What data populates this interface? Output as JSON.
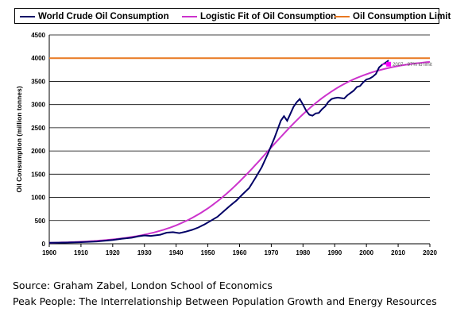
{
  "chart_data": {
    "type": "line",
    "title": "",
    "xlabel": "",
    "ylabel": "Oil Consumption (million tonnes)",
    "xlim": [
      1900,
      2020
    ],
    "ylim": [
      0,
      4500
    ],
    "x_ticks": [
      "1900",
      "1910",
      "1920",
      "1930",
      "1940",
      "1950",
      "1960",
      "1970",
      "1980",
      "1990",
      "2000",
      "2010",
      "2020"
    ],
    "y_ticks": [
      "0",
      "500",
      "1000",
      "1500",
      "2000",
      "2500",
      "3000",
      "3500",
      "4000",
      "4500"
    ],
    "grid": "horizontal",
    "legend": "top",
    "series": [
      {
        "name": "World Crude Oil Consumption",
        "color": "#000066",
        "points": [
          [
            1900,
            20
          ],
          [
            1905,
            25
          ],
          [
            1910,
            35
          ],
          [
            1915,
            50
          ],
          [
            1920,
            80
          ],
          [
            1923,
            110
          ],
          [
            1926,
            130
          ],
          [
            1928,
            160
          ],
          [
            1930,
            180
          ],
          [
            1932,
            170
          ],
          [
            1935,
            195
          ],
          [
            1937,
            240
          ],
          [
            1939,
            250
          ],
          [
            1941,
            230
          ],
          [
            1943,
            260
          ],
          [
            1945,
            300
          ],
          [
            1947,
            350
          ],
          [
            1949,
            420
          ],
          [
            1951,
            500
          ],
          [
            1953,
            580
          ],
          [
            1955,
            700
          ],
          [
            1957,
            820
          ],
          [
            1959,
            930
          ],
          [
            1961,
            1070
          ],
          [
            1963,
            1200
          ],
          [
            1965,
            1420
          ],
          [
            1967,
            1650
          ],
          [
            1969,
            1950
          ],
          [
            1971,
            2280
          ],
          [
            1973,
            2650
          ],
          [
            1974,
            2750
          ],
          [
            1975,
            2650
          ],
          [
            1976,
            2800
          ],
          [
            1977,
            2950
          ],
          [
            1978,
            3050
          ],
          [
            1979,
            3120
          ],
          [
            1980,
            3000
          ],
          [
            1981,
            2870
          ],
          [
            1982,
            2780
          ],
          [
            1983,
            2760
          ],
          [
            1984,
            2810
          ],
          [
            1985,
            2820
          ],
          [
            1986,
            2900
          ],
          [
            1987,
            2960
          ],
          [
            1988,
            3060
          ],
          [
            1989,
            3120
          ],
          [
            1990,
            3140
          ],
          [
            1991,
            3150
          ],
          [
            1992,
            3140
          ],
          [
            1993,
            3130
          ],
          [
            1994,
            3200
          ],
          [
            1995,
            3250
          ],
          [
            1996,
            3300
          ],
          [
            1997,
            3380
          ],
          [
            1998,
            3400
          ],
          [
            1999,
            3480
          ],
          [
            2000,
            3540
          ],
          [
            2001,
            3560
          ],
          [
            2002,
            3600
          ],
          [
            2003,
            3660
          ],
          [
            2004,
            3800
          ],
          [
            2005,
            3860
          ],
          [
            2006,
            3900
          ],
          [
            2007,
            3950
          ]
        ]
      },
      {
        "name": "Logistic Fit of Oil Consumption",
        "color": "#cc33cc",
        "logistic": {
          "limit": 4000,
          "midpoint_year": 1969,
          "rate": 0.076
        },
        "x_range": [
          1900,
          2020
        ]
      },
      {
        "name": "Oil Consumption Limit",
        "color": "#e87820",
        "points": [
          [
            1900,
            4000
          ],
          [
            2020,
            4000
          ]
        ]
      }
    ],
    "annotations": [
      {
        "text": "2007 - 97% to limit",
        "x": 2007,
        "y": 3870,
        "marker_color": "#ff00ff"
      }
    ]
  },
  "source_lines": [
    "Source: Graham Zabel, London School of Economics",
    "Peak People: The Interrelationship Between Population Growth and Energy Resources"
  ]
}
